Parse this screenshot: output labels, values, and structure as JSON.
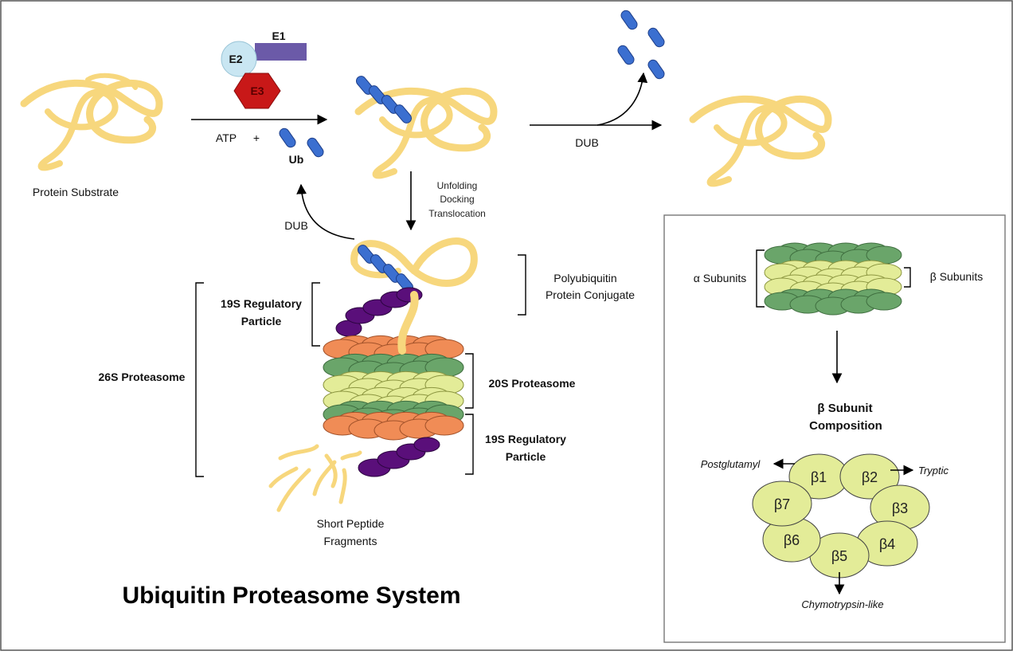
{
  "title": "Ubiquitin Proteasome System",
  "labels": {
    "e1": "E1",
    "e2": "E2",
    "e3": "E3",
    "atp": "ATP",
    "plus": "+",
    "ub": "Ub",
    "protein_substrate": "Protein Substrate",
    "dub_right": "DUB",
    "dub_left": "DUB",
    "unfolding": "Unfolding",
    "docking": "Docking",
    "translocation": "Translocation",
    "polyubiquitin_line1": "Polyubiquitin",
    "polyubiquitin_line2": "Protein Conjugate",
    "regulatory_top_line1": "19S Regulatory",
    "regulatory_top_line2": "Particle",
    "proteasome_26s": "26S Proteasome",
    "proteasome_20s": "20S Proteasome",
    "regulatory_bottom_line1": "19S Regulatory",
    "regulatory_bottom_line2": "Particle",
    "short_peptide_line1": "Short Peptide",
    "short_peptide_line2": "Fragments"
  },
  "inset": {
    "alpha_subunits": "α Subunits",
    "beta_subunits": "β Subunits",
    "composition_line1": "β Subunit",
    "composition_line2": "Composition",
    "postglutamyl": "Postglutamyl",
    "tryptic": "Tryptic",
    "chymotrypsin": "Chymotrypsin-like",
    "betas": [
      "β1",
      "β2",
      "β3",
      "β4",
      "β5",
      "β6",
      "β7"
    ]
  },
  "colors": {
    "ribbon": "#f7d77d",
    "ubiquitin": "#3b6fd0",
    "e1": "#6b5aa8",
    "e2": "#c9e6f2",
    "e3": "#c81818",
    "alpha_ring": "#6aa56a",
    "beta_ring": "#e3ec98",
    "cap_orange": "#f08c56",
    "cap_purple": "#5a0f7a"
  }
}
